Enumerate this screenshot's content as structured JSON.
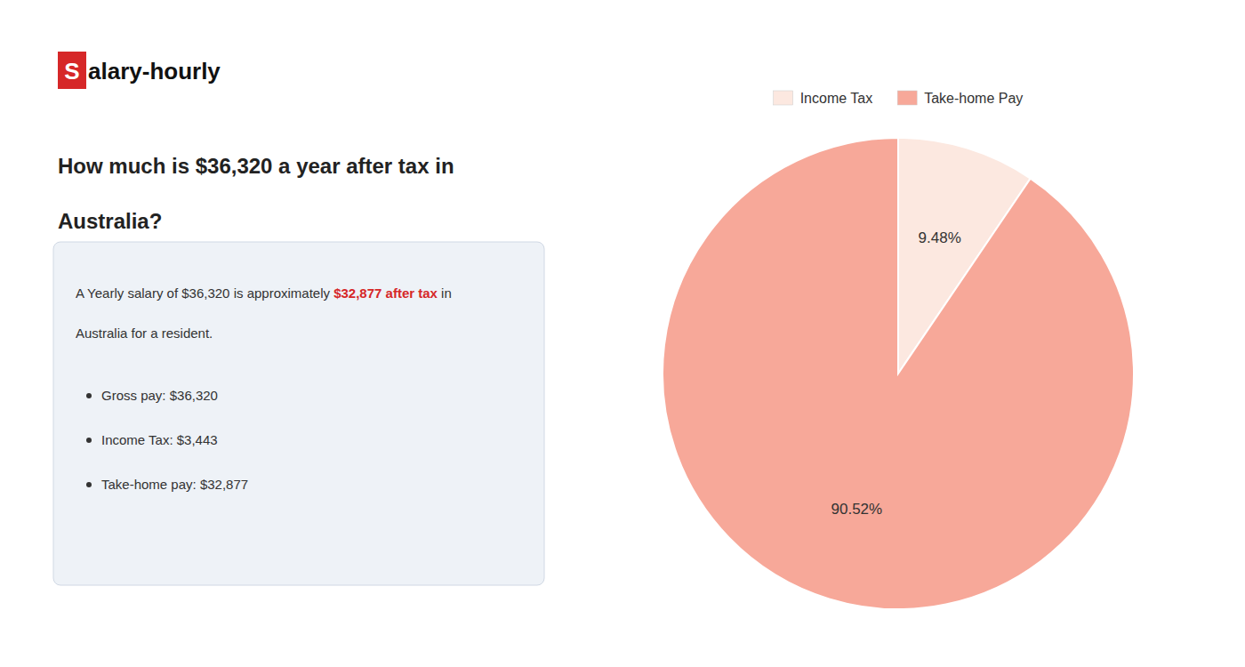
{
  "chart_data": {
    "type": "pie",
    "title": [
      "How much is $36,320 a year after tax in",
      "Australia?"
    ],
    "annotations": [
      "S",
      "alary-hourly",
      "A Yearly salary of $36,320 is approximately ",
      "$32,877 after tax",
      " in",
      "Australia for a resident.",
      "Gross pay: $36,320",
      "Income Tax: $3,443",
      "Take-home pay: $32,877"
    ],
    "categories": [
      "Income Tax",
      "Take-home Pay"
    ],
    "values": [
      9.48,
      90.52
    ],
    "value_labels": [
      "9.48%",
      "90.52%"
    ],
    "colors": [
      "#fce8e0",
      "#f7a899"
    ],
    "data_labels": true,
    "legend": "top"
  }
}
